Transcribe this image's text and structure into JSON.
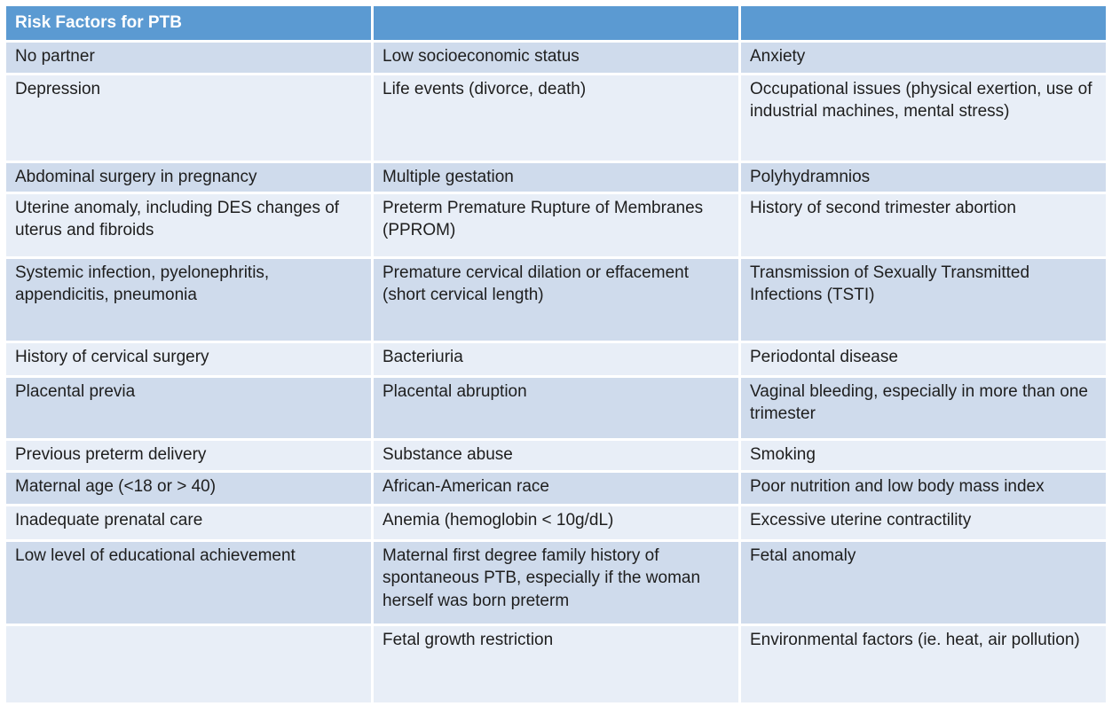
{
  "table": {
    "title": "Risk Factors for PTB",
    "column_count": 3,
    "rows": [
      [
        "No partner",
        "Low socioeconomic status",
        "Anxiety"
      ],
      [
        "Depression",
        "Life events (divorce, death)",
        "Occupational issues (physical exertion, use of industrial machines, mental stress)"
      ],
      [
        "Abdominal surgery in pregnancy",
        "Multiple gestation",
        "Polyhydramnios"
      ],
      [
        "Uterine anomaly, including DES changes of uterus and fibroids",
        "Preterm Premature Rupture of Membranes (PPROM)",
        "History of second trimester abortion"
      ],
      [
        "Systemic infection, pyelonephritis, appendicitis, pneumonia",
        "Premature cervical dilation or effacement (short cervical length)",
        "Transmission of Sexually Transmitted Infections (TSTI)"
      ],
      [
        "History of cervical surgery",
        "Bacteriuria",
        "Periodontal disease"
      ],
      [
        "Placental previa",
        "Placental abruption",
        "Vaginal bleeding, especially in more than one trimester"
      ],
      [
        "Previous preterm delivery",
        "Substance abuse",
        "Smoking"
      ],
      [
        "Maternal age (<18 or > 40)",
        "African-American race",
        "Poor nutrition and low body mass index"
      ],
      [
        "Inadequate prenatal care",
        "Anemia (hemoglobin < 10g/dL)",
        "Excessive uterine contractility"
      ],
      [
        "Low level of educational achievement",
        "Maternal first degree family history of spontaneous PTB, especially if the woman herself was born preterm",
        "Fetal anomaly"
      ],
      [
        "",
        "Fetal growth restriction",
        "Environmental factors (ie. heat, air pollution)"
      ]
    ]
  },
  "colors": {
    "header_bg": "#5B9AD2",
    "header_text": "#FFFFFF",
    "row_dark": "#CFDBEC",
    "row_light": "#E8EEF7",
    "grid": "#FFFFFF",
    "text": "#1E1E1E"
  }
}
